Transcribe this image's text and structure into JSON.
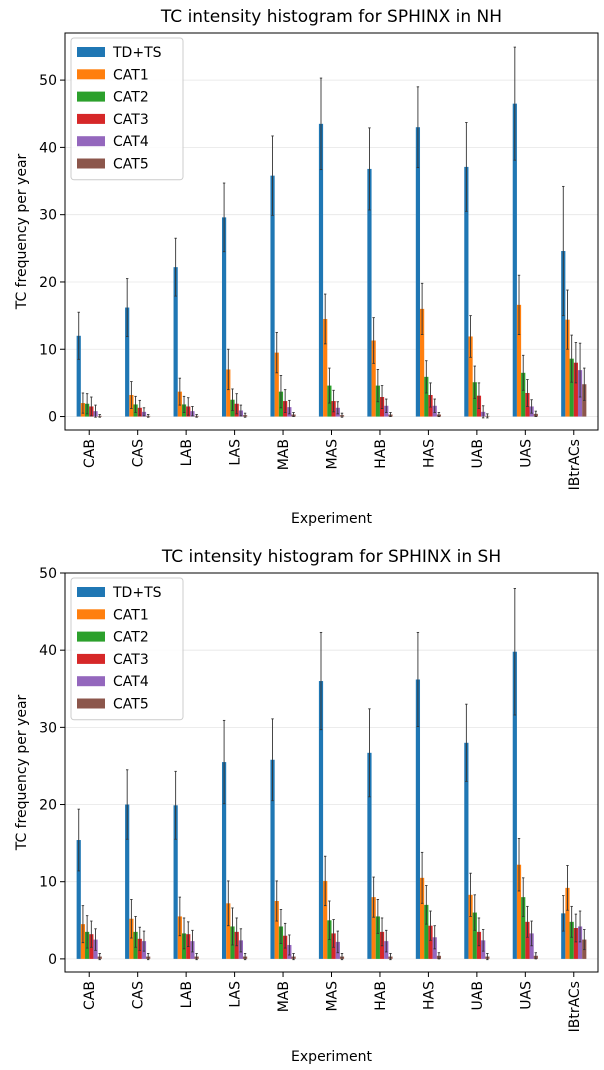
{
  "chart_data": [
    {
      "type": "bar",
      "title": "TC intensity histogram for SPHINX in NH",
      "xlabel": "Experiment",
      "ylabel": "TC frequency per year",
      "ylim": [
        -2,
        57
      ],
      "yticks": [
        0,
        10,
        20,
        30,
        40,
        50
      ],
      "grid": "horizontal",
      "legend": "top-left",
      "categories": [
        "CAB",
        "CAS",
        "LAB",
        "LAS",
        "MAB",
        "MAS",
        "HAB",
        "HAS",
        "UAB",
        "UAS",
        "IBtrACs"
      ],
      "series": [
        {
          "name": "TD+TS",
          "color": "#1f77b4",
          "values": [
            12.0,
            16.2,
            22.2,
            29.6,
            35.8,
            43.5,
            36.8,
            43.0,
            37.1,
            46.5,
            24.6
          ],
          "errors": [
            3.5,
            4.3,
            4.3,
            5.1,
            5.9,
            6.8,
            6.1,
            6.0,
            6.6,
            8.4,
            9.6
          ]
        },
        {
          "name": "CAT1",
          "color": "#ff7f0e",
          "values": [
            2.0,
            3.2,
            3.7,
            7.0,
            9.5,
            14.5,
            11.3,
            16.0,
            11.9,
            16.6,
            14.4
          ],
          "errors": [
            1.5,
            2.0,
            2.0,
            3.0,
            3.0,
            3.7,
            3.4,
            3.8,
            3.1,
            4.4,
            4.4
          ]
        },
        {
          "name": "CAT2",
          "color": "#2ca02c",
          "values": [
            1.9,
            1.8,
            1.8,
            2.5,
            3.7,
            4.6,
            4.6,
            5.9,
            5.1,
            6.5,
            8.6
          ],
          "errors": [
            1.5,
            1.2,
            1.2,
            1.6,
            2.4,
            2.6,
            2.4,
            2.4,
            2.4,
            2.6,
            3.5
          ]
        },
        {
          "name": "CAT3",
          "color": "#d62728",
          "values": [
            1.5,
            1.3,
            1.5,
            1.9,
            2.3,
            2.3,
            2.9,
            3.2,
            3.1,
            3.5,
            8.0
          ],
          "errors": [
            1.4,
            1.1,
            1.3,
            1.5,
            1.7,
            1.6,
            1.7,
            1.8,
            1.9,
            2.0,
            3.0
          ]
        },
        {
          "name": "CAT4",
          "color": "#9467bd",
          "values": [
            0.8,
            0.7,
            0.8,
            0.9,
            1.4,
            1.3,
            1.6,
            1.6,
            0.7,
            1.5,
            6.9
          ],
          "errors": [
            0.9,
            0.6,
            0.7,
            0.8,
            1.0,
            0.9,
            1.0,
            1.0,
            0.9,
            1.0,
            4.0
          ]
        },
        {
          "name": "CAT5",
          "color": "#8c564b",
          "values": [
            0.1,
            0.1,
            0.1,
            0.2,
            0.3,
            0.2,
            0.3,
            0.3,
            0.1,
            0.4,
            4.8
          ],
          "errors": [
            0.2,
            0.2,
            0.2,
            0.3,
            0.3,
            0.3,
            0.3,
            0.3,
            0.3,
            0.4,
            2.4
          ]
        }
      ]
    },
    {
      "type": "bar",
      "title": "TC intensity histogram for SPHINX in SH",
      "xlabel": "Experiment",
      "ylabel": "TC frequency per year",
      "ylim": [
        -1.7,
        50
      ],
      "yticks": [
        0,
        10,
        20,
        30,
        40,
        50
      ],
      "grid": "horizontal",
      "legend": "top-left",
      "categories": [
        "CAB",
        "CAS",
        "LAB",
        "LAS",
        "MAB",
        "MAS",
        "HAB",
        "HAS",
        "UAB",
        "UAS",
        "IBtrACs"
      ],
      "series": [
        {
          "name": "TD+TS",
          "color": "#1f77b4",
          "values": [
            15.4,
            20.0,
            19.9,
            25.5,
            25.8,
            36.0,
            26.7,
            36.2,
            28.0,
            39.8,
            5.9
          ],
          "errors": [
            4.0,
            4.5,
            4.4,
            5.4,
            5.3,
            6.3,
            5.7,
            6.1,
            5.0,
            8.2,
            2.3
          ]
        },
        {
          "name": "CAT1",
          "color": "#ff7f0e",
          "values": [
            4.5,
            5.2,
            5.5,
            7.2,
            7.5,
            10.1,
            8.0,
            10.5,
            8.3,
            12.2,
            9.2
          ],
          "errors": [
            2.4,
            2.5,
            2.5,
            2.9,
            2.6,
            3.2,
            2.6,
            3.3,
            2.8,
            3.4,
            2.9
          ]
        },
        {
          "name": "CAT2",
          "color": "#2ca02c",
          "values": [
            3.5,
            3.5,
            3.3,
            4.2,
            4.2,
            5.0,
            5.5,
            7.0,
            6.0,
            8.0,
            4.8
          ],
          "errors": [
            2.1,
            2.0,
            2.0,
            2.4,
            2.2,
            2.5,
            2.2,
            2.5,
            2.3,
            2.5,
            2.0
          ]
        },
        {
          "name": "CAT3",
          "color": "#d62728",
          "values": [
            3.2,
            2.6,
            3.2,
            3.5,
            3.0,
            3.3,
            3.5,
            4.3,
            3.5,
            4.8,
            4.0
          ],
          "errors": [
            1.7,
            1.5,
            1.6,
            1.8,
            1.6,
            1.8,
            1.8,
            1.9,
            1.8,
            2.0,
            1.8
          ]
        },
        {
          "name": "CAT4",
          "color": "#9467bd",
          "values": [
            2.5,
            2.3,
            2.3,
            2.4,
            1.8,
            2.2,
            2.3,
            2.8,
            2.4,
            3.3,
            4.2
          ],
          "errors": [
            1.4,
            1.3,
            1.4,
            1.5,
            1.3,
            1.4,
            1.4,
            1.5,
            1.4,
            1.6,
            2.0
          ]
        },
        {
          "name": "CAT5",
          "color": "#8c564b",
          "values": [
            0.3,
            0.3,
            0.3,
            0.3,
            0.3,
            0.3,
            0.3,
            0.4,
            0.3,
            0.4,
            2.5
          ],
          "errors": [
            0.4,
            0.4,
            0.4,
            0.4,
            0.4,
            0.4,
            0.4,
            0.4,
            0.4,
            0.4,
            1.3
          ]
        }
      ]
    }
  ]
}
